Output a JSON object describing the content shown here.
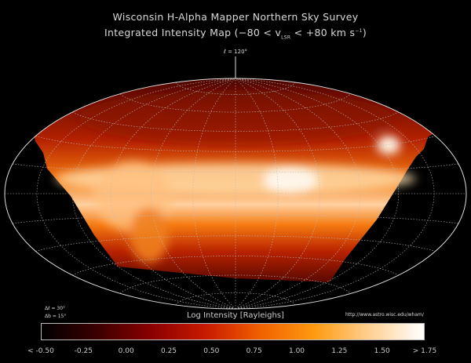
{
  "title_line1": "Wisconsin H-Alpha Mapper Northern Sky Survey",
  "title_line2": "Integrated Intensity Map (-80 < vLSR < +80 km s-1)",
  "center_longitude_label": "ℓ = 120°",
  "grid": {
    "delta_l_label": "Δℓ = 30°",
    "delta_b_label": "Δb = 15°",
    "delta_l_deg": 30,
    "delta_b_deg": 15
  },
  "projection": "hammer-aitoff",
  "url": "http://www.astro.wisc.edu/wham/",
  "colorbar": {
    "title": "Log Intensity [Rayleighs]",
    "range": [
      -0.5,
      1.75
    ],
    "tick_labels": [
      "< -0.50",
      "-0.25",
      "0.00",
      "0.25",
      "0.50",
      "0.75",
      "1.00",
      "1.25",
      "1.50",
      "> 1.75"
    ],
    "colors": [
      "#000000",
      "#3a0000",
      "#8a0000",
      "#c81a00",
      "#f06000",
      "#ff9a10",
      "#ffd090",
      "#ffffff"
    ]
  }
}
